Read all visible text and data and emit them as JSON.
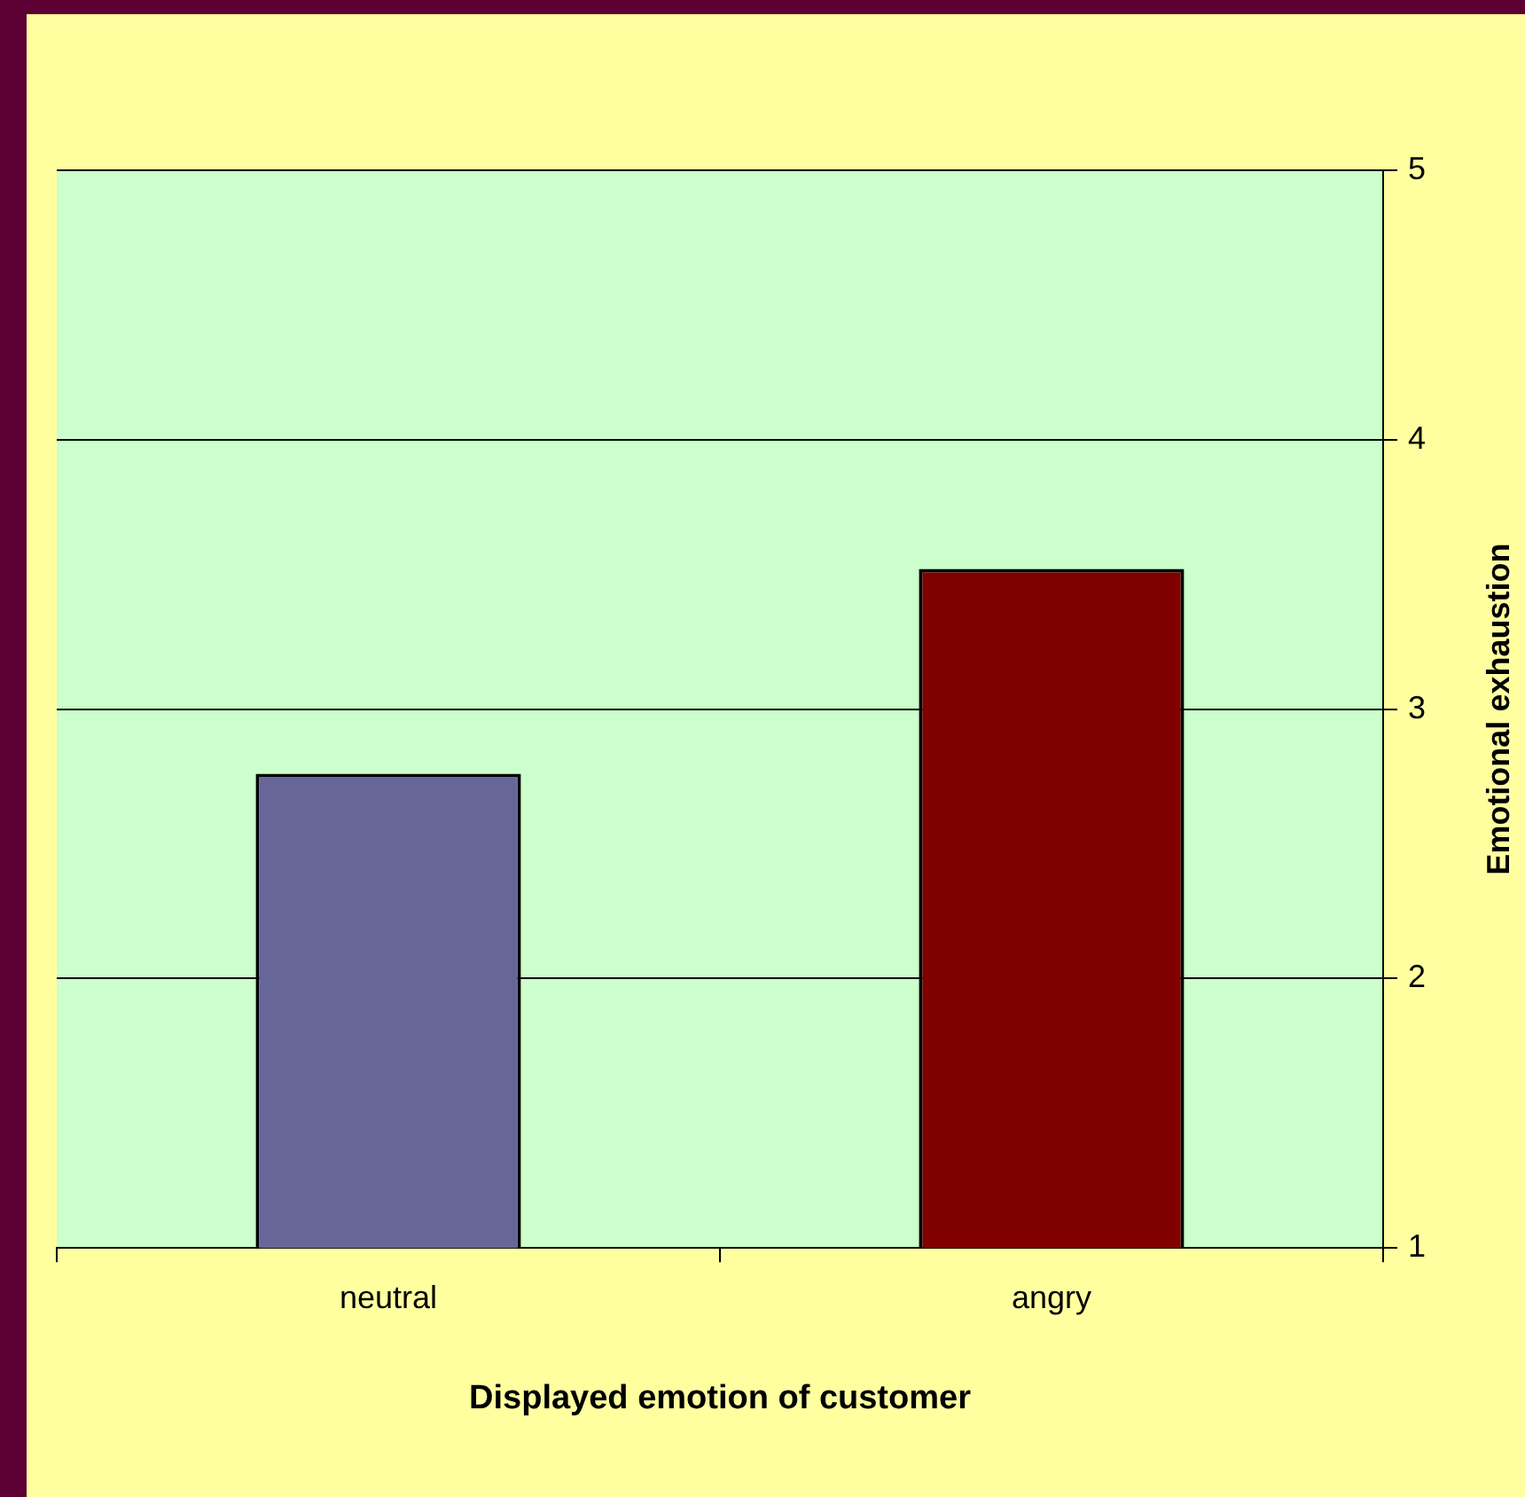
{
  "chart_data": {
    "type": "bar",
    "categories": [
      "neutral",
      "angry"
    ],
    "values": [
      2.76,
      3.52
    ],
    "colors": [
      "#666699",
      "#800000"
    ],
    "xlabel": "Displayed emotion of customer",
    "ylabel": "Emotional exhaustion",
    "ylim": [
      1,
      5
    ],
    "yticks": [
      1,
      2,
      3,
      4,
      5
    ],
    "grid": "y"
  }
}
